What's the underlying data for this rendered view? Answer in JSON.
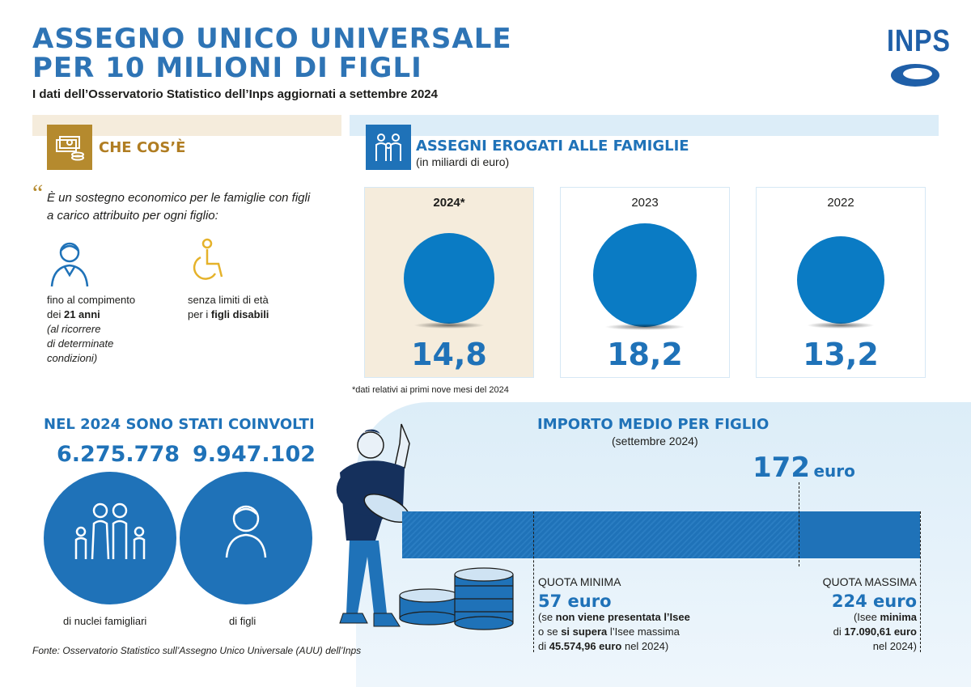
{
  "header": {
    "title_line1": "ASSEGNO UNICO UNIVERSALE",
    "title_line2": "PER 10 MILIONI DI FIGLI",
    "subtitle": "I dati dell’Osservatorio Statistico dell’Inps aggiornati a settembre 2024",
    "logo": "INPS"
  },
  "what": {
    "heading": "CHE COS’È",
    "definition": "È un sostegno economico per le famiglie con figli a carico attribuito per ogni figlio:",
    "item1_a": "fino al compimento",
    "item1_b_pre": "dei ",
    "item1_b_bold": "21 anni",
    "item1_c": "(al ricorrere",
    "item1_d": "di determinate",
    "item1_e": "condizioni)",
    "item2_a": "senza limiti di età",
    "item2_b_pre": "per i ",
    "item2_b_bold": "figli disabili"
  },
  "assegni": {
    "heading": "ASSEGNI EROGATI ALLE FAMIGLIE",
    "unit": "(in miliardi di euro)",
    "cards": [
      {
        "year": "2024*",
        "value": "14,8",
        "amount": 14.8
      },
      {
        "year": "2023",
        "value": "18,2",
        "amount": 18.2
      },
      {
        "year": "2022",
        "value": "13,2",
        "amount": 13.2
      }
    ],
    "note": "*dati relativi ai primi nove mesi del 2024"
  },
  "coinvolti": {
    "heading": "NEL 2024 SONO STATI COINVOLTI",
    "families_value": "6.275.778",
    "families_label": "di nuclei famigliari",
    "children_value": "9.947.102",
    "children_label": "di figli"
  },
  "importo": {
    "heading": "IMPORTO MEDIO PER FIGLIO",
    "period": "(settembre 2024)",
    "avg_value": "172",
    "avg_unit": "euro",
    "min_label": "QUOTA MINIMA",
    "min_value": "57 euro",
    "min_note1_pre": "(se ",
    "min_note1_bold": "non viene presentata l’Isee",
    "min_note2_pre": "o se ",
    "min_note2_bold": "si supera",
    "min_note2_post": " l’Isee massima",
    "min_note3_pre": "di ",
    "min_note3_bold": "45.574,96 euro",
    "min_note3_post": " nel 2024)",
    "max_label": "QUOTA MASSIMA",
    "max_value": "224 euro",
    "max_note1_pre": "(Isee ",
    "max_note1_bold": "minima",
    "max_note2_pre": "di ",
    "max_note2_bold": "17.090,61 euro",
    "max_note3": "nel 2024)"
  },
  "footer": "Fonte: Osservatorio Statistico sull’Assegno Unico Universale (AUU) dell’Inps",
  "colors": {
    "primary_blue": "#1f72b8",
    "gold": "#b58a2e",
    "beige": "#f5ecdc",
    "light_blue": "#dcedf8"
  }
}
